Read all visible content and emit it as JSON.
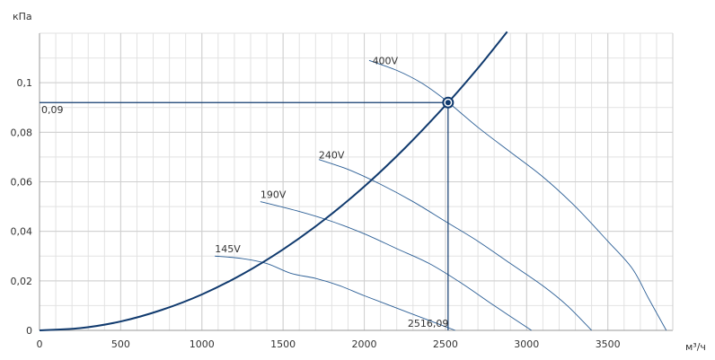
{
  "chart_data": {
    "type": "line",
    "ylabel": "кПа",
    "xlabel": "м³/ч",
    "xlim": [
      0,
      3900
    ],
    "ylim": [
      0,
      0.12
    ],
    "x_ticks": [
      0,
      500,
      1000,
      1500,
      2000,
      2500,
      3000,
      3500
    ],
    "x_tick_labels": [
      "0",
      "500",
      "1000",
      "1500",
      "2000",
      "2500",
      "3000",
      "3500"
    ],
    "y_ticks": [
      0,
      0.02,
      0.04,
      0.06,
      0.08,
      0.1
    ],
    "y_tick_labels": [
      "0",
      "0,02",
      "0,04",
      "0,06",
      "0,08",
      "0,1"
    ],
    "grid": true,
    "x_minor_step": 100,
    "y_minor_step": 0.01,
    "system_curve": {
      "color": "#103a6e",
      "points": [
        [
          0,
          0
        ],
        [
          250,
          0.0009
        ],
        [
          500,
          0.0036
        ],
        [
          750,
          0.0082
        ],
        [
          1000,
          0.0145
        ],
        [
          1250,
          0.0227
        ],
        [
          1500,
          0.0327
        ],
        [
          1750,
          0.0445
        ],
        [
          2000,
          0.0581
        ],
        [
          2250,
          0.0736
        ],
        [
          2516.09,
          0.092
        ],
        [
          2700,
          0.1059
        ],
        [
          2880,
          0.1206
        ]
      ]
    },
    "series": [
      {
        "name": "400V",
        "label_at": [
          2050,
          0.1075
        ],
        "color": "#2c5f96",
        "points": [
          [
            2030,
            0.109
          ],
          [
            2200,
            0.105
          ],
          [
            2350,
            0.1
          ],
          [
            2500,
            0.093
          ],
          [
            2700,
            0.082
          ],
          [
            2900,
            0.072
          ],
          [
            3100,
            0.062
          ],
          [
            3300,
            0.05
          ],
          [
            3500,
            0.036
          ],
          [
            3650,
            0.025
          ],
          [
            3750,
            0.013
          ],
          [
            3860,
            0
          ]
        ]
      },
      {
        "name": "240V",
        "label_at": [
          1720,
          0.0695
        ],
        "color": "#2c5f96",
        "points": [
          [
            1720,
            0.069
          ],
          [
            1900,
            0.065
          ],
          [
            2100,
            0.059
          ],
          [
            2300,
            0.052
          ],
          [
            2500,
            0.044
          ],
          [
            2700,
            0.036
          ],
          [
            2900,
            0.027
          ],
          [
            3100,
            0.018
          ],
          [
            3250,
            0.01
          ],
          [
            3400,
            0
          ]
        ]
      },
      {
        "name": "190V",
        "label_at": [
          1360,
          0.0535
        ],
        "color": "#2c5f96",
        "points": [
          [
            1360,
            0.052
          ],
          [
            1600,
            0.048
          ],
          [
            1800,
            0.044
          ],
          [
            2000,
            0.039
          ],
          [
            2200,
            0.033
          ],
          [
            2400,
            0.027
          ],
          [
            2600,
            0.019
          ],
          [
            2800,
            0.01
          ],
          [
            3030,
            0
          ]
        ]
      },
      {
        "name": "145V",
        "label_at": [
          1080,
          0.0315
        ],
        "color": "#2c5f96",
        "points": [
          [
            1080,
            0.03
          ],
          [
            1250,
            0.029
          ],
          [
            1400,
            0.027
          ],
          [
            1550,
            0.023
          ],
          [
            1700,
            0.021
          ],
          [
            1850,
            0.018
          ],
          [
            2000,
            0.014
          ],
          [
            2200,
            0.009
          ],
          [
            2400,
            0.004
          ],
          [
            2560,
            0
          ]
        ]
      }
    ],
    "operating_point": {
      "x": 2516.09,
      "y": 0.092,
      "x_label": "2516,09",
      "y_label": "0,09",
      "color": "#103a6e"
    }
  }
}
